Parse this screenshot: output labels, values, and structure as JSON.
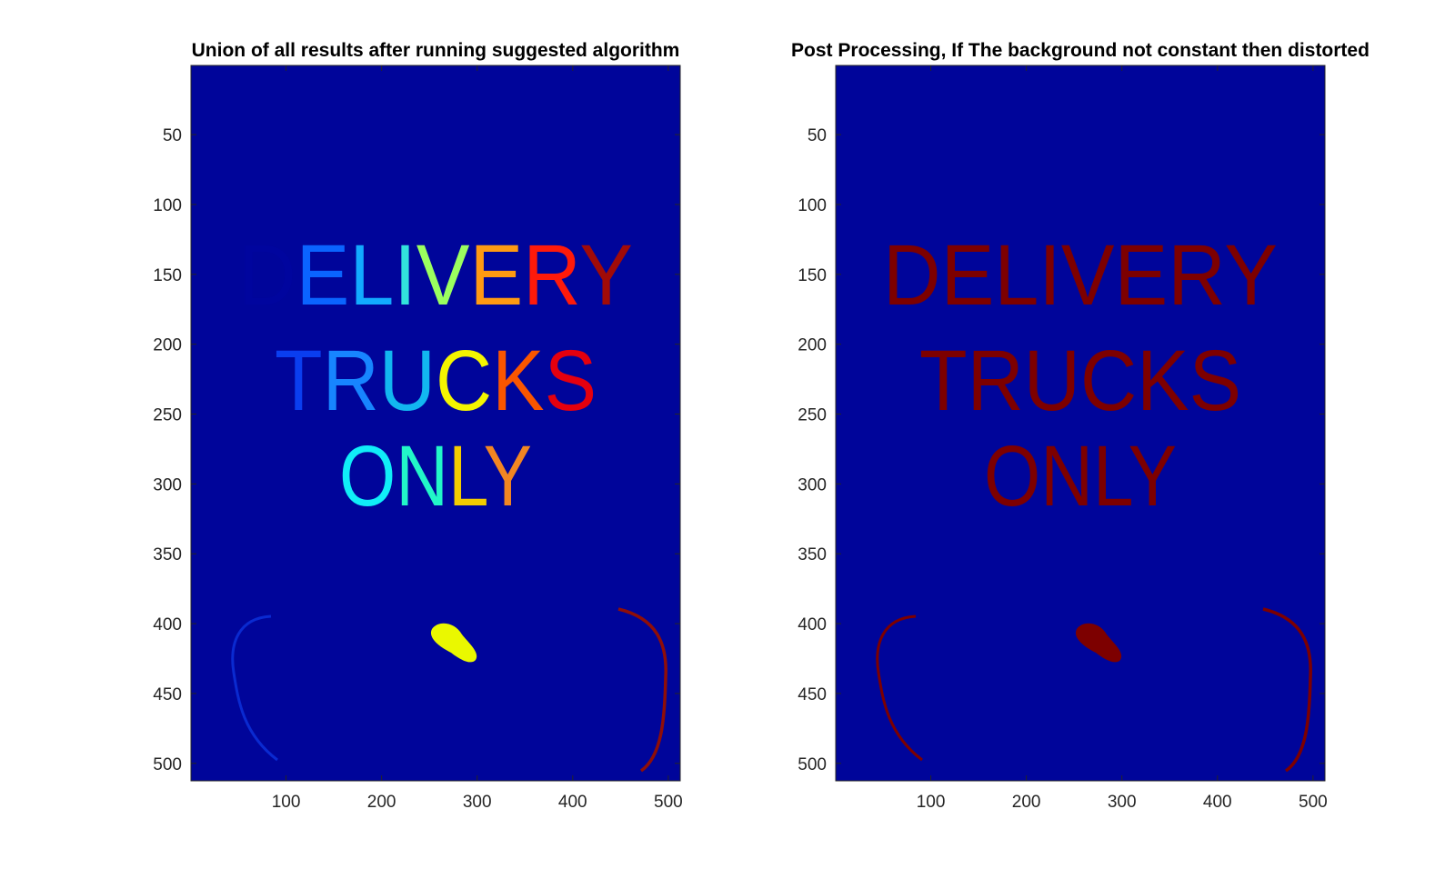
{
  "figure": {
    "panels": [
      {
        "title": "Union of all results after running suggested algorithm",
        "lines": [
          "DELIVERY",
          "TRUCKS",
          "ONLY"
        ],
        "letter_colors": [
          [
            "#00059e",
            "#0a64ff",
            "#12aaff",
            "#32e3dc",
            "#9bff5f",
            "#ff9a12",
            "#ff1a0a",
            "#a10b08"
          ],
          [
            "#0a3ef0",
            "#1785ff",
            "#12b7f0",
            "#f4f500",
            "#fa5600",
            "#e5000e"
          ],
          [
            "#10eef8",
            "#22f6c8",
            "#f4cc00",
            "#f28622"
          ]
        ],
        "marks": {
          "left_arc_color": "#0a2ad0",
          "right_arc_color": "#8f0e08",
          "blob_color": "#eaf800"
        }
      },
      {
        "title": "Post Processing, If The background not constant then distorted",
        "lines": [
          "DELIVERY",
          "TRUCKS",
          "ONLY"
        ],
        "letter_colors": [
          [
            "#7d0000",
            "#7d0000",
            "#7d0000",
            "#7d0000",
            "#7d0000",
            "#7d0000",
            "#7d0000",
            "#7d0000"
          ],
          [
            "#7d0000",
            "#7d0000",
            "#7d0000",
            "#7d0000",
            "#7d0000",
            "#7d0000"
          ],
          [
            "#7d0000",
            "#7d0000",
            "#7d0000",
            "#7d0000"
          ]
        ],
        "marks": {
          "left_arc_color": "#7d0000",
          "right_arc_color": "#7d0000",
          "blob_color": "#7d0000"
        }
      }
    ],
    "axis": {
      "x_ticks": [
        100,
        200,
        300,
        400,
        500
      ],
      "y_ticks": [
        50,
        100,
        150,
        200,
        250,
        300,
        350,
        400,
        450,
        500
      ],
      "x_range": [
        1,
        512
      ],
      "y_range": [
        1,
        512
      ]
    },
    "colors": {
      "image_background": "#00059a",
      "axes_line": "#262626"
    }
  }
}
